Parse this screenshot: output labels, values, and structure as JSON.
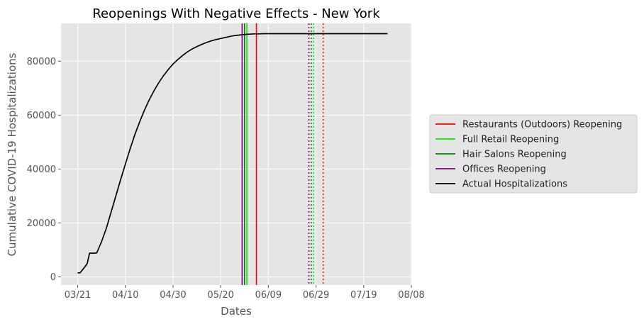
{
  "chart_data": {
    "type": "line",
    "title": "Reopenings With Negative Effects - New York",
    "xlabel": "Dates",
    "ylabel": "Cumulative COVID-19 Hospitalizations",
    "x_ticks": [
      "03/21",
      "04/10",
      "04/30",
      "05/20",
      "06/09",
      "06/29",
      "07/19",
      "08/08"
    ],
    "x_tick_days": [
      0,
      20,
      40,
      60,
      80,
      100,
      120,
      140
    ],
    "x_axis_start_date": "03/21",
    "xlim": [
      -7,
      140
    ],
    "y_ticks": [
      "0",
      "20000",
      "40000",
      "60000",
      "80000"
    ],
    "y_tick_values": [
      0,
      20000,
      40000,
      60000,
      80000
    ],
    "ylim": [
      -3000,
      94000
    ],
    "grid": true,
    "legend_position": "right",
    "series": [
      {
        "name": "Actual Hospitalizations",
        "color": "#000000",
        "style": "solid",
        "x_days": [
          0,
          1,
          2,
          3,
          4,
          5,
          6,
          7,
          8,
          10,
          12,
          14,
          16,
          18,
          20,
          22,
          24,
          26,
          28,
          30,
          32,
          34,
          36,
          38,
          40,
          42,
          44,
          46,
          48,
          50,
          52,
          54,
          56,
          58,
          60,
          62,
          64,
          66,
          68,
          70,
          72,
          74,
          76,
          78,
          80,
          90,
          100,
          110,
          120,
          130
        ],
        "values": [
          1500,
          1500,
          2600,
          3700,
          5000,
          8800,
          8800,
          8800,
          8900,
          13000,
          18000,
          24000,
          30000,
          36000,
          41800,
          47500,
          52800,
          57500,
          61800,
          65600,
          69000,
          72000,
          74600,
          76900,
          78900,
          80600,
          82100,
          83400,
          84500,
          85400,
          86200,
          86900,
          87500,
          88000,
          88400,
          88800,
          89200,
          89500,
          89700,
          89900,
          90000,
          90100,
          90100,
          90200,
          90200,
          90200,
          90200,
          90200,
          90200,
          90200
        ]
      }
    ],
    "reopenings": [
      {
        "name": "Restaurants (Outdoors) Reopening",
        "color": "#ff0000",
        "day": 75,
        "effect_day": 103
      },
      {
        "name": "Full Retail Reopening",
        "color": "#00ee00",
        "day": 71,
        "effect_day": 99
      },
      {
        "name": "Hair Salons Reopening",
        "color": "#008000",
        "day": 70,
        "effect_day": 98
      },
      {
        "name": "Offices Reopening",
        "color": "#800080",
        "day": 69,
        "effect_day": 97
      }
    ],
    "legend": [
      {
        "label": "Restaurants (Outdoors) Reopening",
        "color": "#ff0000"
      },
      {
        "label": "Full Retail Reopening",
        "color": "#00ee00"
      },
      {
        "label": "Hair Salons Reopening",
        "color": "#008000"
      },
      {
        "label": "Offices Reopening",
        "color": "#800080"
      },
      {
        "label": "Actual Hospitalizations",
        "color": "#000000"
      }
    ]
  }
}
